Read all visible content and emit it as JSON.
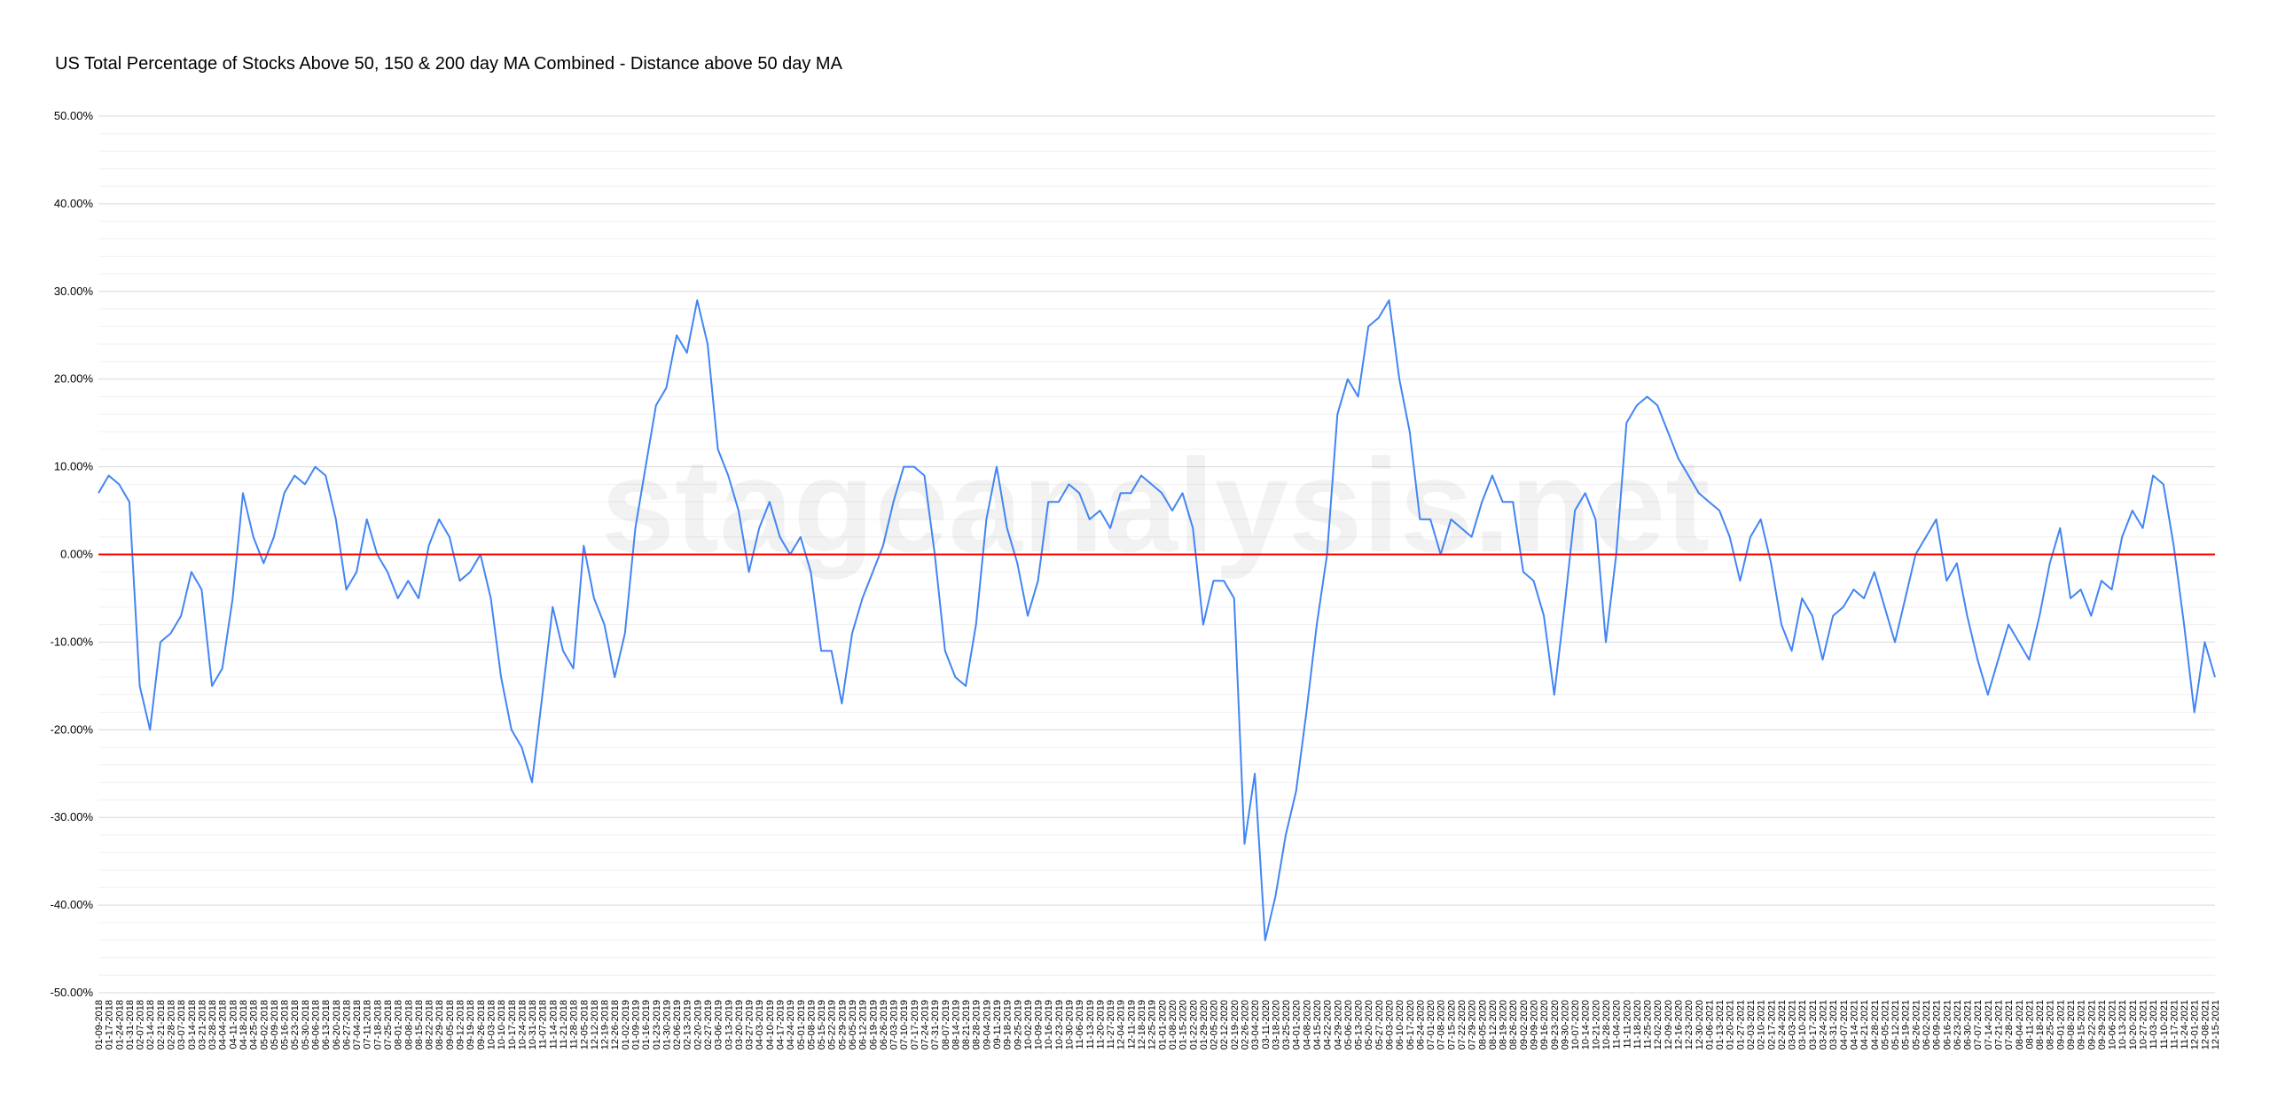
{
  "chart_data": {
    "type": "line",
    "title": "US Total Percentage of Stocks Above 50, 150 & 200 day MA Combined - Distance above 50 day MA",
    "watermark": "stageanalysis.net",
    "categories": [
      "01-09-2018",
      "01-17-2018",
      "01-24-2018",
      "01-31-2018",
      "02-07-2018",
      "02-14-2018",
      "02-21-2018",
      "02-28-2018",
      "03-07-2018",
      "03-14-2018",
      "03-21-2018",
      "03-28-2018",
      "04-04-2018",
      "04-11-2018",
      "04-18-2018",
      "04-25-2018",
      "05-02-2018",
      "05-09-2018",
      "05-16-2018",
      "05-23-2018",
      "05-30-2018",
      "06-06-2018",
      "06-13-2018",
      "06-20-2018",
      "06-27-2018",
      "07-04-2018",
      "07-11-2018",
      "07-18-2018",
      "07-25-2018",
      "08-01-2018",
      "08-08-2018",
      "08-15-2018",
      "08-22-2018",
      "08-29-2018",
      "09-05-2018",
      "09-12-2018",
      "09-19-2018",
      "09-26-2018",
      "10-03-2018",
      "10-10-2018",
      "10-17-2018",
      "10-24-2018",
      "10-31-2018",
      "11-07-2018",
      "11-14-2018",
      "11-21-2018",
      "11-28-2018",
      "12-05-2018",
      "12-12-2018",
      "12-19-2018",
      "12-26-2018",
      "01-02-2019",
      "01-09-2019",
      "01-16-2019",
      "01-23-2019",
      "01-30-2019",
      "02-06-2019",
      "02-13-2019",
      "02-20-2019",
      "02-27-2019",
      "03-06-2019",
      "03-13-2019",
      "03-20-2019",
      "03-27-2019",
      "04-03-2019",
      "04-10-2019",
      "04-17-2019",
      "04-24-2019",
      "05-01-2019",
      "05-08-2019",
      "05-15-2019",
      "05-22-2019",
      "05-29-2019",
      "06-05-2019",
      "06-12-2019",
      "06-19-2019",
      "06-26-2019",
      "07-03-2019",
      "07-10-2019",
      "07-17-2019",
      "07-24-2019",
      "07-31-2019",
      "08-07-2019",
      "08-14-2019",
      "08-21-2019",
      "08-28-2019",
      "09-04-2019",
      "09-11-2019",
      "09-18-2019",
      "09-25-2019",
      "10-02-2019",
      "10-09-2019",
      "10-16-2019",
      "10-23-2019",
      "10-30-2019",
      "11-06-2019",
      "11-13-2019",
      "11-20-2019",
      "11-27-2019",
      "12-04-2019",
      "12-11-2019",
      "12-18-2019",
      "12-25-2019",
      "01-01-2020",
      "01-08-2020",
      "01-15-2020",
      "01-22-2020",
      "01-29-2020",
      "02-05-2020",
      "02-12-2020",
      "02-19-2020",
      "02-26-2020",
      "03-04-2020",
      "03-11-2020",
      "03-18-2020",
      "03-25-2020",
      "04-01-2020",
      "04-08-2020",
      "04-15-2020",
      "04-22-2020",
      "04-29-2020",
      "05-06-2020",
      "05-13-2020",
      "05-20-2020",
      "05-27-2020",
      "06-03-2020",
      "06-10-2020",
      "06-17-2020",
      "06-24-2020",
      "07-01-2020",
      "07-08-2020",
      "07-15-2020",
      "07-22-2020",
      "07-29-2020",
      "08-05-2020",
      "08-12-2020",
      "08-19-2020",
      "08-26-2020",
      "09-02-2020",
      "09-09-2020",
      "09-16-2020",
      "09-23-2020",
      "09-30-2020",
      "10-07-2020",
      "10-14-2020",
      "10-21-2020",
      "10-28-2020",
      "11-04-2020",
      "11-11-2020",
      "11-18-2020",
      "11-25-2020",
      "12-02-2020",
      "12-09-2020",
      "12-16-2020",
      "12-23-2020",
      "12-30-2020",
      "01-06-2021",
      "01-13-2021",
      "01-20-2021",
      "01-27-2021",
      "02-03-2021",
      "02-10-2021",
      "02-17-2021",
      "02-24-2021",
      "03-03-2021",
      "03-10-2021",
      "03-17-2021",
      "03-24-2021",
      "03-31-2021",
      "04-07-2021",
      "04-14-2021",
      "04-21-2021",
      "04-28-2021",
      "05-05-2021",
      "05-12-2021",
      "05-19-2021",
      "05-26-2021",
      "06-02-2021",
      "06-09-2021",
      "06-16-2021",
      "06-23-2021",
      "06-30-2021",
      "07-07-2021",
      "07-14-2021",
      "07-21-2021",
      "07-28-2021",
      "08-04-2021",
      "08-11-2021",
      "08-18-2021",
      "08-25-2021",
      "09-01-2021",
      "09-08-2021",
      "09-15-2021",
      "09-22-2021",
      "09-29-2021",
      "10-06-2021",
      "10-13-2021",
      "10-20-2021",
      "10-27-2021",
      "11-03-2021",
      "11-10-2021",
      "11-17-2021",
      "11-24-2021",
      "12-01-2021",
      "12-08-2021",
      "12-15-2021"
    ],
    "series": [
      {
        "name": "Distance above 50 day MA",
        "color": "#4285f4",
        "values": [
          7,
          9,
          8,
          6,
          -15,
          -20,
          -10,
          -9,
          -7,
          -2,
          -4,
          -15,
          -13,
          -5,
          7,
          2,
          -1,
          2,
          7,
          9,
          8,
          10,
          9,
          4,
          -4,
          -2,
          4,
          0,
          -2,
          -5,
          -3,
          -5,
          1,
          4,
          2,
          -3,
          -2,
          0,
          -5,
          -14,
          -20,
          -22,
          -26,
          -16,
          -6,
          -11,
          -13,
          1,
          -5,
          -8,
          -14,
          -9,
          3,
          10,
          17,
          19,
          25,
          23,
          29,
          24,
          12,
          9,
          5,
          -2,
          3,
          6,
          2,
          0,
          2,
          -2,
          -11,
          -11,
          -17,
          -9,
          -5,
          -2,
          1,
          6,
          10,
          10,
          9,
          0,
          -11,
          -14,
          -15,
          -8,
          4,
          10,
          3,
          -1,
          -7,
          -3,
          6,
          6,
          8,
          7,
          4,
          5,
          3,
          7,
          7,
          9,
          8,
          7,
          5,
          7,
          3,
          -8,
          -3,
          -3,
          -5,
          -33,
          -25,
          -44,
          -39,
          -32,
          -27,
          -18,
          -8,
          0,
          16,
          20,
          18,
          26,
          27,
          29,
          20,
          14,
          4,
          4,
          0,
          4,
          3,
          2,
          6,
          9,
          6,
          6,
          -2,
          -3,
          -7,
          -16,
          -6,
          5,
          7,
          4,
          -10,
          0,
          15,
          17,
          18,
          17,
          14,
          11,
          9,
          7,
          6,
          5,
          2,
          -3,
          2,
          4,
          -1,
          -8,
          -11,
          -5,
          -7,
          -12,
          -7,
          -6,
          -4,
          -5,
          -2,
          -6,
          -10,
          -5,
          0,
          2,
          4,
          -3,
          -1,
          -7,
          -12,
          -16,
          -12,
          -8,
          -10,
          -12,
          -7,
          -1,
          3,
          -5,
          -4,
          -7,
          -3,
          -4,
          2,
          5,
          3,
          9,
          8,
          1,
          -8,
          -18,
          -10,
          -14
        ]
      }
    ],
    "ylim": [
      -50,
      50
    ],
    "yticks": [
      {
        "value": -50,
        "label": "-50.00%"
      },
      {
        "value": -40,
        "label": "-40.00%"
      },
      {
        "value": -30,
        "label": "-30.00%"
      },
      {
        "value": -20,
        "label": "-20.00%"
      },
      {
        "value": -10,
        "label": "-10.00%"
      },
      {
        "value": 0,
        "label": "0.00%"
      },
      {
        "value": 10,
        "label": "10.00%"
      },
      {
        "value": 20,
        "label": "20.00%"
      },
      {
        "value": 30,
        "label": "30.00%"
      },
      {
        "value": 40,
        "label": "40.00%"
      },
      {
        "value": 50,
        "label": "50.00%"
      }
    ],
    "grid": true,
    "minor_grid": true,
    "reference_line": {
      "value": 0,
      "color": "#ff0000"
    }
  }
}
